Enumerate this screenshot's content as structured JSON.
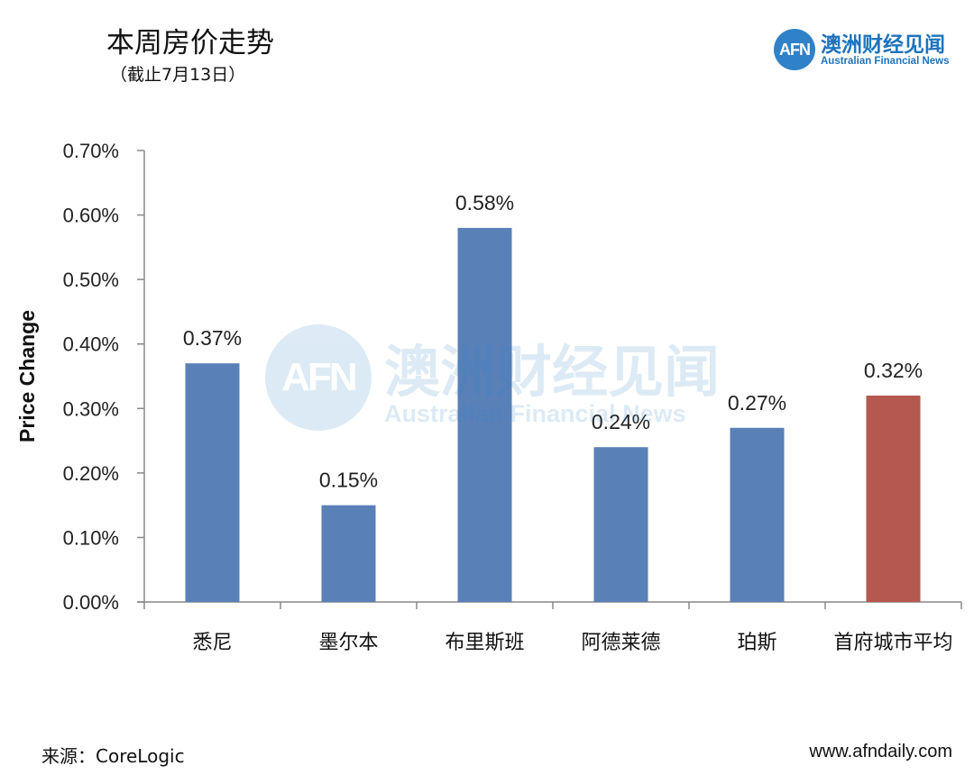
{
  "header": {
    "title": "本周房价走势",
    "subtitle": "（截止7月13日）"
  },
  "logo": {
    "mark": "AFN",
    "name_cn": "澳洲财经见闻",
    "name_en": "Australian Financial News"
  },
  "watermark": {
    "mark": "AFN",
    "name_cn": "澳洲财经见闻",
    "name_en": "Australian Financial News"
  },
  "footer": {
    "source": "来源：CoreLogic",
    "website": "www.afndaily.com"
  },
  "chart_data": {
    "type": "bar",
    "title": "本周房价走势",
    "ylabel": "Price Change",
    "xlabel": "",
    "ylim": [
      0,
      0.7
    ],
    "yticks": [
      0.0,
      0.1,
      0.2,
      0.3,
      0.4,
      0.5,
      0.6,
      0.7
    ],
    "ytick_labels": [
      "0.00%",
      "0.10%",
      "0.20%",
      "0.30%",
      "0.40%",
      "0.50%",
      "0.60%",
      "0.70%"
    ],
    "categories": [
      "悉尼",
      "墨尔本",
      "布里斯班",
      "阿德莱德",
      "珀斯",
      "首府城市平均"
    ],
    "values": [
      0.37,
      0.15,
      0.58,
      0.24,
      0.27,
      0.32
    ],
    "data_labels": [
      "0.37%",
      "0.15%",
      "0.58%",
      "0.24%",
      "0.27%",
      "0.32%"
    ],
    "colors": [
      "#5a80b8",
      "#5a80b8",
      "#5a80b8",
      "#5a80b8",
      "#5a80b8",
      "#b45850"
    ],
    "grid": false,
    "legend": "none"
  }
}
